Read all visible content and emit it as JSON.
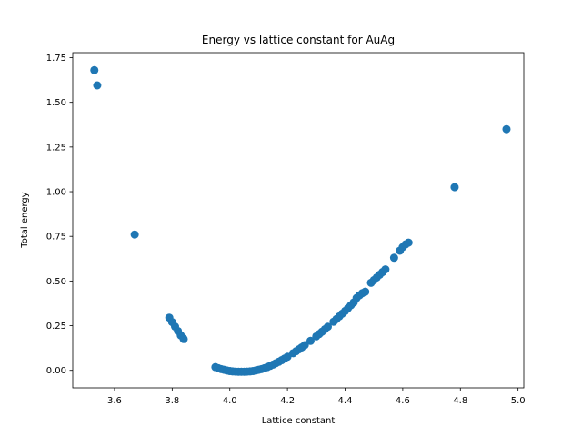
{
  "chart_data": {
    "type": "scatter",
    "title": "Energy vs lattice constant for AuAg",
    "xlabel": "Lattice constant",
    "ylabel": "Total energy",
    "xlim": [
      3.455,
      5.02
    ],
    "ylim": [
      -0.098,
      1.778
    ],
    "xticks": [
      3.6,
      3.8,
      4.0,
      4.2,
      4.4,
      4.6,
      4.8,
      5.0
    ],
    "xtick_labels": [
      "3.6",
      "3.8",
      "4.0",
      "4.2",
      "4.4",
      "4.6",
      "4.8",
      "5.0"
    ],
    "yticks": [
      0.0,
      0.25,
      0.5,
      0.75,
      1.0,
      1.25,
      1.5,
      1.75
    ],
    "ytick_labels": [
      "0.00",
      "0.25",
      "0.50",
      "0.75",
      "1.00",
      "1.25",
      "1.50",
      "1.75"
    ],
    "grid": false,
    "marker_color": "#1f77b4",
    "points": [
      {
        "x": 3.53,
        "y": 1.68
      },
      {
        "x": 3.54,
        "y": 1.595
      },
      {
        "x": 3.67,
        "y": 0.76
      },
      {
        "x": 3.79,
        "y": 0.295
      },
      {
        "x": 3.8,
        "y": 0.27
      },
      {
        "x": 3.81,
        "y": 0.245
      },
      {
        "x": 3.82,
        "y": 0.22
      },
      {
        "x": 3.83,
        "y": 0.195
      },
      {
        "x": 3.84,
        "y": 0.175
      },
      {
        "x": 3.95,
        "y": 0.018
      },
      {
        "x": 3.96,
        "y": 0.012
      },
      {
        "x": 3.97,
        "y": 0.007
      },
      {
        "x": 3.98,
        "y": 0.003
      },
      {
        "x": 3.99,
        "y": -0.001
      },
      {
        "x": 4.0,
        "y": -0.004
      },
      {
        "x": 4.01,
        "y": -0.006
      },
      {
        "x": 4.02,
        "y": -0.007
      },
      {
        "x": 4.03,
        "y": -0.008
      },
      {
        "x": 4.04,
        "y": -0.008
      },
      {
        "x": 4.05,
        "y": -0.008
      },
      {
        "x": 4.06,
        "y": -0.007
      },
      {
        "x": 4.07,
        "y": -0.006
      },
      {
        "x": 4.08,
        "y": -0.004
      },
      {
        "x": 4.09,
        "y": -0.001
      },
      {
        "x": 4.1,
        "y": 0.003
      },
      {
        "x": 4.11,
        "y": 0.007
      },
      {
        "x": 4.12,
        "y": 0.012
      },
      {
        "x": 4.13,
        "y": 0.018
      },
      {
        "x": 4.14,
        "y": 0.025
      },
      {
        "x": 4.15,
        "y": 0.032
      },
      {
        "x": 4.16,
        "y": 0.04
      },
      {
        "x": 4.17,
        "y": 0.048
      },
      {
        "x": 4.18,
        "y": 0.057
      },
      {
        "x": 4.19,
        "y": 0.066
      },
      {
        "x": 4.2,
        "y": 0.076
      },
      {
        "x": 4.22,
        "y": 0.096
      },
      {
        "x": 4.23,
        "y": 0.107
      },
      {
        "x": 4.24,
        "y": 0.118
      },
      {
        "x": 4.25,
        "y": 0.129
      },
      {
        "x": 4.26,
        "y": 0.141
      },
      {
        "x": 4.28,
        "y": 0.165
      },
      {
        "x": 4.3,
        "y": 0.19
      },
      {
        "x": 4.31,
        "y": 0.203
      },
      {
        "x": 4.32,
        "y": 0.216
      },
      {
        "x": 4.33,
        "y": 0.23
      },
      {
        "x": 4.34,
        "y": 0.244
      },
      {
        "x": 4.36,
        "y": 0.272
      },
      {
        "x": 4.37,
        "y": 0.287
      },
      {
        "x": 4.38,
        "y": 0.302
      },
      {
        "x": 4.39,
        "y": 0.317
      },
      {
        "x": 4.4,
        "y": 0.332
      },
      {
        "x": 4.41,
        "y": 0.348
      },
      {
        "x": 4.42,
        "y": 0.364
      },
      {
        "x": 4.43,
        "y": 0.38
      },
      {
        "x": 4.44,
        "y": 0.405
      },
      {
        "x": 4.45,
        "y": 0.42
      },
      {
        "x": 4.46,
        "y": 0.432
      },
      {
        "x": 4.47,
        "y": 0.44
      },
      {
        "x": 4.49,
        "y": 0.49
      },
      {
        "x": 4.5,
        "y": 0.505
      },
      {
        "x": 4.51,
        "y": 0.52
      },
      {
        "x": 4.52,
        "y": 0.535
      },
      {
        "x": 4.53,
        "y": 0.55
      },
      {
        "x": 4.54,
        "y": 0.565
      },
      {
        "x": 4.57,
        "y": 0.63
      },
      {
        "x": 4.59,
        "y": 0.67
      },
      {
        "x": 4.6,
        "y": 0.69
      },
      {
        "x": 4.61,
        "y": 0.705
      },
      {
        "x": 4.62,
        "y": 0.715
      },
      {
        "x": 4.78,
        "y": 1.025
      },
      {
        "x": 4.96,
        "y": 1.35
      }
    ]
  }
}
